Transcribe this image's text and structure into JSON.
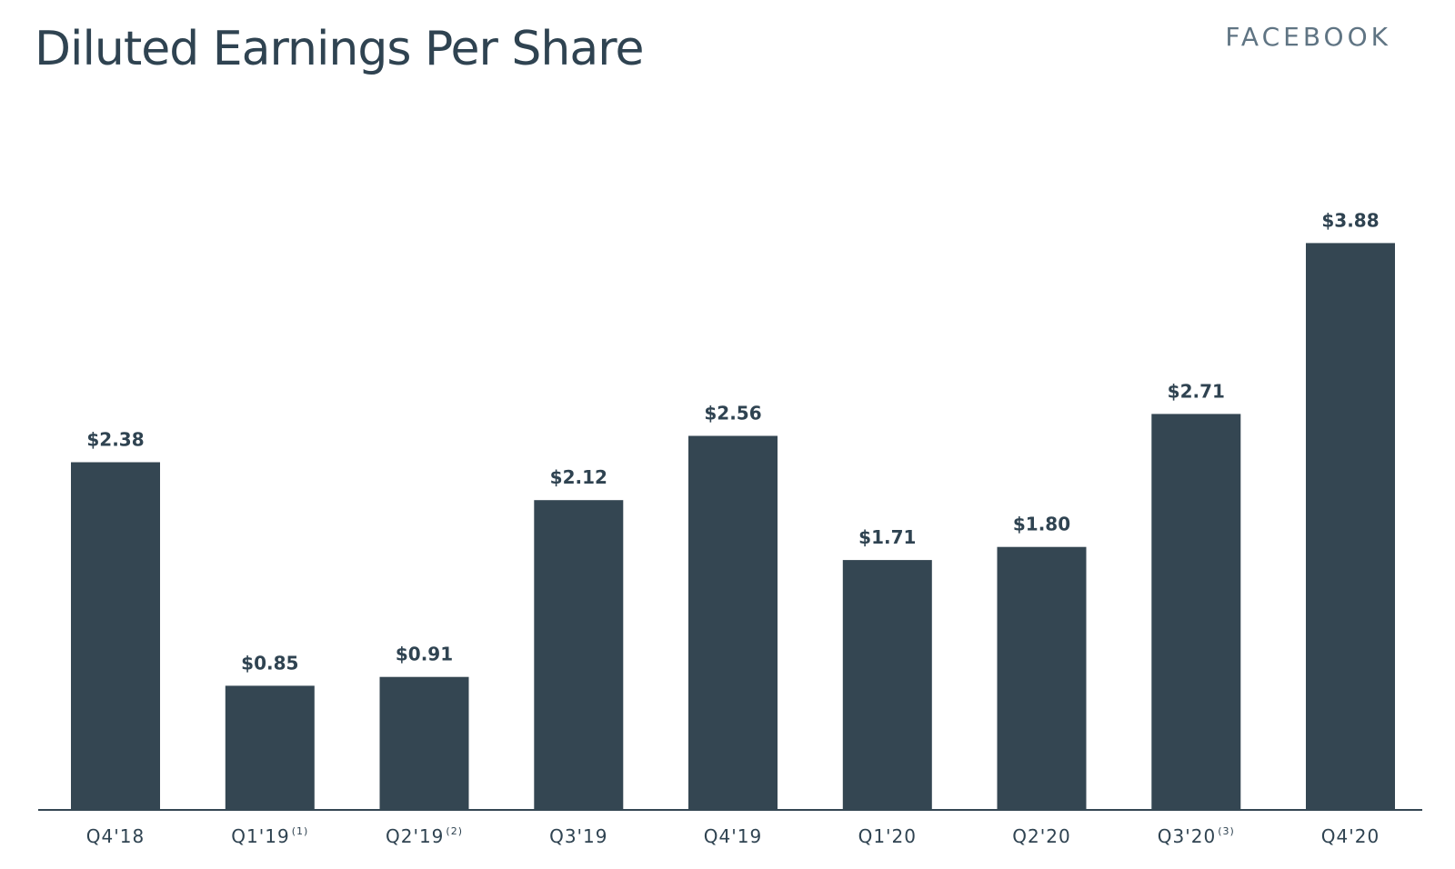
{
  "header": {
    "title": "Diluted Earnings Per Share",
    "brand": "FACEBOOK"
  },
  "colors": {
    "bar": "#344652",
    "text": "#2f4351",
    "axis": "#344652",
    "brand": "#5f7483"
  },
  "chart_data": {
    "type": "bar",
    "title": "Diluted Earnings Per Share",
    "xlabel": "",
    "ylabel": "",
    "ylim": [
      0,
      4.1
    ],
    "grid": false,
    "legend": "none",
    "categories": [
      "Q4'18",
      "Q1'19",
      "Q2'19",
      "Q3'19",
      "Q4'19",
      "Q1'20",
      "Q2'20",
      "Q3'20",
      "Q4'20"
    ],
    "footnotes": [
      "",
      "(1)",
      "(2)",
      "",
      "",
      "",
      "",
      "(3)",
      ""
    ],
    "values": [
      2.38,
      0.85,
      0.91,
      2.12,
      2.56,
      1.71,
      1.8,
      2.71,
      3.88
    ],
    "value_labels": [
      "$2.38",
      "$0.85",
      "$0.91",
      "$2.12",
      "$2.56",
      "$1.71",
      "$1.80",
      "$2.71",
      "$3.88"
    ]
  }
}
